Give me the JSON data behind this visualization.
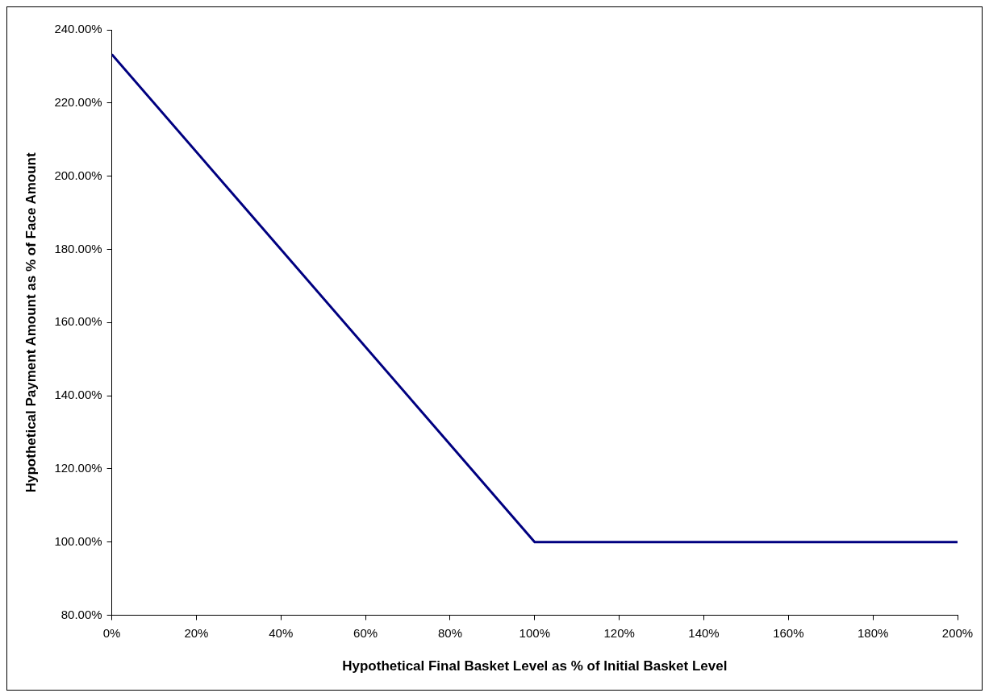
{
  "chart_data": {
    "type": "line",
    "xlabel": "Hypothetical Final Basket Level as % of Initial Basket Level",
    "ylabel": "Hypothetical Payment Amount as % of Face Amount",
    "series": [
      {
        "color": "#000080",
        "x": [
          0,
          100,
          200
        ],
        "values": [
          233.3,
          100,
          100
        ]
      }
    ],
    "xlim": [
      0,
      200
    ],
    "xticks": [
      {
        "value": 0,
        "label": "0%"
      },
      {
        "value": 20,
        "label": "20%"
      },
      {
        "value": 40,
        "label": "40%"
      },
      {
        "value": 60,
        "label": "60%"
      },
      {
        "value": 80,
        "label": "80%"
      },
      {
        "value": 100,
        "label": "100%"
      },
      {
        "value": 120,
        "label": "120%"
      },
      {
        "value": 140,
        "label": "140%"
      },
      {
        "value": 160,
        "label": "160%"
      },
      {
        "value": 180,
        "label": "180%"
      },
      {
        "value": 200,
        "label": "200%"
      }
    ],
    "ylim": [
      80,
      240
    ],
    "yticks": [
      {
        "value": 80,
        "label": "80.00%"
      },
      {
        "value": 100,
        "label": "100.00%"
      },
      {
        "value": 120,
        "label": "120.00%"
      },
      {
        "value": 140,
        "label": "140.00%"
      },
      {
        "value": 160,
        "label": "160.00%"
      },
      {
        "value": 180,
        "label": "180.00%"
      },
      {
        "value": 200,
        "label": "200.00%"
      },
      {
        "value": 220,
        "label": "220.00%"
      },
      {
        "value": 240,
        "label": "240.00%"
      }
    ],
    "grid": false,
    "legend": false,
    "marker": "none",
    "line_style": "solid"
  }
}
